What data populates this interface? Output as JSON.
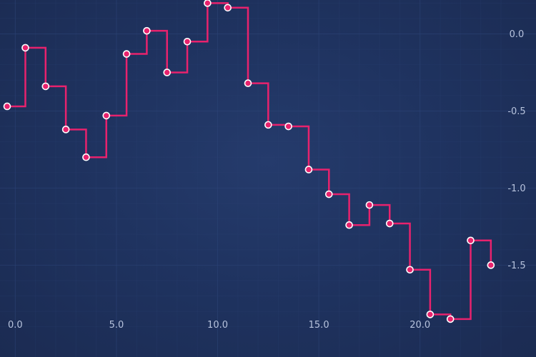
{
  "chart_data": {
    "type": "line",
    "step": true,
    "title": "",
    "xlabel": "",
    "ylabel": "",
    "xlim": [
      -0.4,
      24.0
    ],
    "ylim": [
      -1.92,
      0.22
    ],
    "x_ticks": [
      "0.0",
      "5.0",
      "10.0",
      "15.0",
      "20.0"
    ],
    "y_ticks": [
      "0.0",
      "-0.5",
      "-1.0",
      "-1.5"
    ],
    "y_axis_position": "right",
    "grid": true,
    "legend": "none",
    "colors": {
      "line": "#e8226d",
      "marker_fill": "#e8226d",
      "marker_stroke": "#ffffff",
      "grid": "#2e4578",
      "tick_text": "#b7c3dd"
    },
    "series": [
      {
        "x": [
          -0.4,
          0.5,
          1.5,
          2.5,
          3.5,
          4.5,
          5.5,
          6.5,
          7.5,
          8.5,
          9.5,
          10.5,
          11.5,
          12.5,
          13.5,
          14.5,
          15.5,
          16.5,
          17.5,
          18.5,
          19.5,
          20.5,
          21.5,
          22.5,
          23.5
        ],
        "y": [
          -0.47,
          -0.09,
          -0.34,
          -0.62,
          -0.8,
          -0.53,
          -0.13,
          0.02,
          -0.25,
          -0.05,
          0.2,
          0.17,
          -0.32,
          -0.59,
          -0.6,
          -0.88,
          -1.04,
          -1.24,
          -1.11,
          -1.23,
          -1.53,
          -1.82,
          -1.85,
          -1.34,
          -1.5
        ]
      }
    ]
  }
}
